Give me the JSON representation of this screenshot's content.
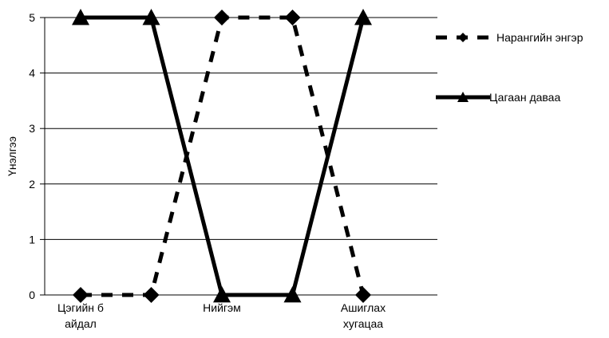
{
  "chart_data": {
    "type": "line",
    "title": "",
    "xlabel": "",
    "ylabel": "Үнэлгээ",
    "ylim": [
      0,
      5
    ],
    "y_ticks": [
      "0",
      "1",
      "2",
      "3",
      "4",
      "5"
    ],
    "grid": "horizontal",
    "legend_position": "right",
    "x": [
      [
        "Цэгийн б",
        "айдал"
      ],
      [
        "",
        ""
      ],
      [
        "Нийгэм",
        ""
      ],
      [
        "",
        ""
      ],
      [
        "Ашиглах",
        "хугацаа"
      ]
    ],
    "series": [
      {
        "name": "Нарангийн энгэр",
        "style": "dashed",
        "marker": "diamond",
        "color": "#000000",
        "values": [
          0,
          0,
          5,
          5,
          0
        ]
      },
      {
        "name": "Цагаан даваа",
        "style": "solid",
        "marker": "triangle",
        "color": "#000000",
        "values": [
          5,
          5,
          0,
          0,
          5
        ]
      }
    ]
  }
}
